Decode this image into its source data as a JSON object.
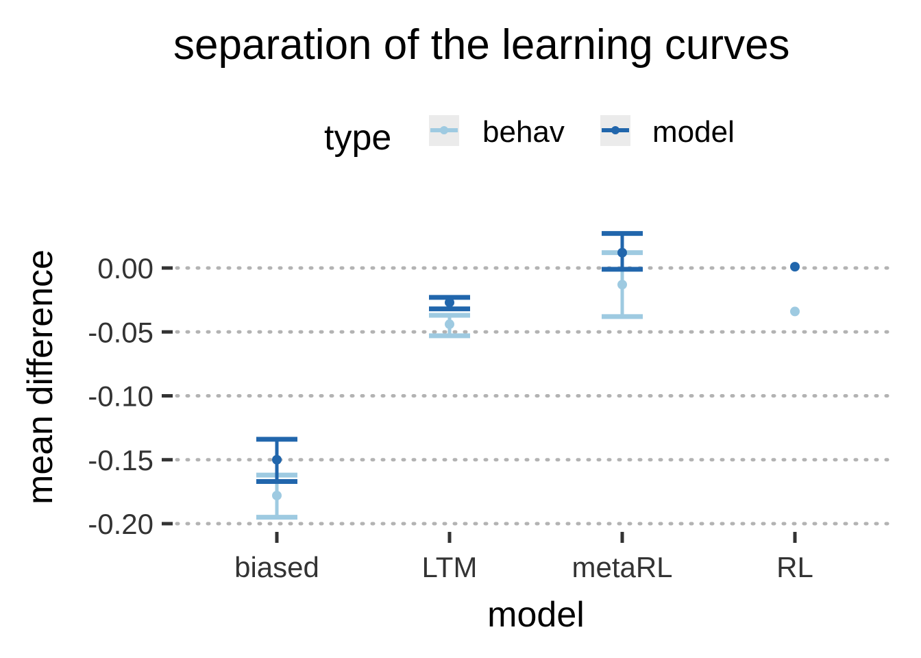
{
  "chart_data": {
    "type": "errorbar",
    "title": "separation of the learning curves",
    "xlabel": "model",
    "ylabel": "mean difference",
    "categories": [
      "biased",
      "LTM",
      "metaRL",
      "RL"
    ],
    "ylim": [
      -0.2,
      0.03
    ],
    "y_ticks": [
      0.0,
      -0.05,
      -0.1,
      -0.15,
      -0.2
    ],
    "y_tick_labels": [
      "0.00",
      "-0.05",
      "-0.10",
      "-0.15",
      "-0.20"
    ],
    "grid": "horizontal-dotted",
    "legend": {
      "title": "type",
      "position": "top",
      "entries": [
        {
          "label": "behav",
          "color": "#9ecae1"
        },
        {
          "label": "model",
          "color": "#2166ac"
        }
      ]
    },
    "series": [
      {
        "name": "behav",
        "color": "#9ecae1",
        "points": [
          {
            "x": "biased",
            "y": -0.178,
            "lo": -0.195,
            "hi": -0.162
          },
          {
            "x": "LTM",
            "y": -0.044,
            "lo": -0.053,
            "hi": -0.037
          },
          {
            "x": "metaRL",
            "y": -0.013,
            "lo": -0.038,
            "hi": 0.012
          },
          {
            "x": "RL",
            "y": -0.034,
            "lo": null,
            "hi": null
          }
        ]
      },
      {
        "name": "model",
        "color": "#2166ac",
        "points": [
          {
            "x": "biased",
            "y": -0.15,
            "lo": -0.167,
            "hi": -0.134
          },
          {
            "x": "LTM",
            "y": -0.027,
            "lo": -0.032,
            "hi": -0.023
          },
          {
            "x": "metaRL",
            "y": 0.012,
            "lo": -0.001,
            "hi": 0.027
          },
          {
            "x": "RL",
            "y": 0.001,
            "lo": null,
            "hi": null
          }
        ]
      }
    ]
  }
}
